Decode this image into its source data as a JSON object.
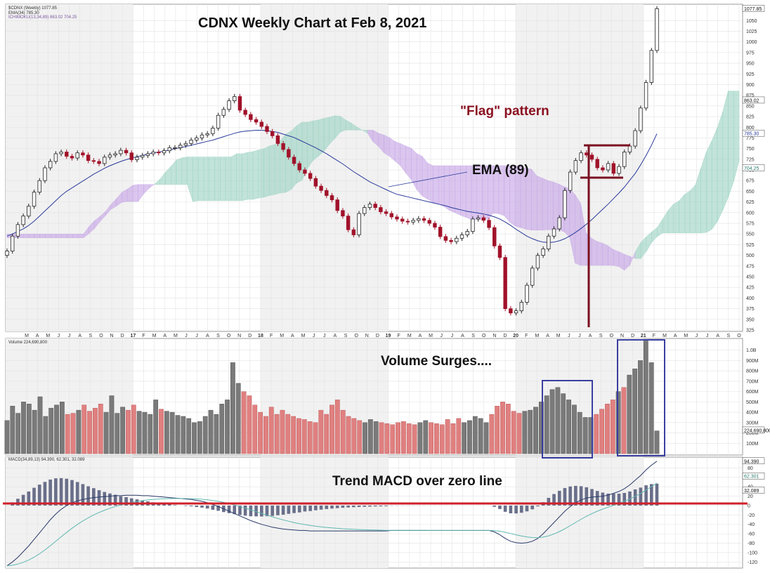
{
  "chart_data": {
    "type": "candlestick",
    "title": "CDNX Weekly Chart at Feb 8, 2021",
    "legend": {
      "price": "$CDNX (Weekly) 1077.85",
      "ema": "EMA(34) 785.30",
      "ichimoku": "ICHIMOKU(13,34,89) 863.02 704.25",
      "volume": "Volume 224,690,800",
      "macd": "MACD(34,89,13) 94.390, 62.301, 32.089"
    },
    "annotations": {
      "flag": "\"Flag\" pattern",
      "ema": "EMA (89)",
      "volume": "Volume Surges....",
      "macd": "Trend MACD over zero line"
    },
    "price_axis": {
      "ylim": [
        325,
        1085
      ],
      "ticks": [
        "1050",
        "1025",
        "1000",
        "975",
        "950",
        "925",
        "900",
        "875",
        "850",
        "825",
        "800",
        "775",
        "750",
        "725",
        "700",
        "675",
        "650",
        "625",
        "600",
        "575",
        "550",
        "525",
        "500",
        "475",
        "450",
        "425",
        "400",
        "375",
        "350",
        "325"
      ],
      "value_labels": [
        "1077.85",
        "863.02",
        "785.30",
        "704.25"
      ]
    },
    "volume_axis": {
      "ylim": [
        0,
        1100
      ],
      "ticks": [
        "1.0B",
        "900M",
        "800M",
        "700M",
        "600M",
        "500M",
        "400M",
        "300M",
        "200M",
        "100M"
      ],
      "value_labels": [
        "224,690,800"
      ]
    },
    "macd_axis": {
      "ylim": [
        -130,
        100
      ],
      "ticks": [
        "80",
        "60",
        "40",
        "20",
        "0",
        "-20",
        "-40",
        "-60",
        "-80",
        "-100",
        "-120"
      ],
      "value_labels": [
        "94.390",
        "62.301",
        "32.089"
      ]
    },
    "x_labels": [
      "M",
      "A",
      "M",
      "J",
      "J",
      "A",
      "S",
      "O",
      "N",
      "D",
      "17",
      "F",
      "M",
      "A",
      "M",
      "J",
      "J",
      "A",
      "S",
      "O",
      "N",
      "D",
      "18",
      "F",
      "M",
      "A",
      "M",
      "J",
      "J",
      "A",
      "S",
      "O",
      "N",
      "D",
      "19",
      "F",
      "M",
      "A",
      "M",
      "J",
      "J",
      "A",
      "S",
      "O",
      "N",
      "D",
      "20",
      "F",
      "M",
      "A",
      "M",
      "J",
      "J",
      "A",
      "S",
      "O",
      "N",
      "D",
      "21",
      "F",
      "M",
      "A",
      "M",
      "J",
      "J",
      "A",
      "S",
      "O"
    ],
    "close_series": [
      510,
      545,
      572,
      592,
      615,
      648,
      675,
      705,
      720,
      738,
      742,
      732,
      728,
      740,
      735,
      722,
      720,
      715,
      730,
      735,
      738,
      746,
      740,
      724,
      730,
      734,
      738,
      742,
      740,
      745,
      752,
      752,
      758,
      762,
      770,
      775,
      782,
      785,
      798,
      828,
      842,
      862,
      872,
      840,
      830,
      818,
      812,
      802,
      790,
      780,
      762,
      748,
      730,
      715,
      700,
      692,
      680,
      662,
      652,
      640,
      630,
      605,
      592,
      560,
      548,
      598,
      612,
      620,
      612,
      602,
      598,
      590,
      585,
      580,
      578,
      582,
      586,
      582,
      575,
      566,
      544,
      535,
      532,
      540,
      548,
      556,
      585,
      588,
      582,
      565,
      522,
      495,
      375,
      365,
      370,
      390,
      430,
      470,
      500,
      515,
      545,
      562,
      588,
      652,
      695,
      722,
      740,
      735,
      725,
      705,
      700,
      715,
      692,
      708,
      742,
      756,
      792,
      845,
      905,
      980,
      1077.85
    ],
    "ema89_series": [
      545,
      550,
      556,
      562,
      570,
      580,
      592,
      604,
      616,
      628,
      640,
      650,
      658,
      666,
      674,
      682,
      690,
      697,
      704,
      710,
      715,
      720,
      724,
      728,
      731,
      734,
      737,
      740,
      742,
      744,
      747,
      750,
      752,
      755,
      758,
      761,
      764,
      767,
      770,
      774,
      778,
      782,
      786,
      789,
      791,
      792,
      793,
      793,
      792,
      790,
      788,
      784,
      780,
      776,
      770,
      764,
      758,
      752,
      745,
      738,
      730,
      722,
      714,
      705,
      696,
      688,
      680,
      672,
      666,
      660,
      654,
      648,
      643,
      640,
      637,
      634,
      631,
      628,
      625,
      622,
      619,
      616,
      612,
      609,
      606,
      603,
      601,
      599,
      597,
      594,
      590,
      585,
      578,
      570,
      561,
      553,
      545,
      539,
      534,
      531,
      530,
      531,
      534,
      539,
      546,
      554,
      563,
      573,
      584,
      596,
      608,
      620,
      633,
      646,
      660,
      676,
      692,
      712,
      734,
      758,
      785
    ],
    "macd_series": [
      -128,
      -120,
      -110,
      -98,
      -86,
      -72,
      -58,
      -44,
      -30,
      -18,
      -8,
      0,
      6,
      10,
      13,
      15,
      17,
      18,
      19,
      20,
      21,
      21,
      22,
      22,
      22,
      21,
      21,
      20,
      19,
      18,
      17,
      16,
      15,
      14,
      13,
      11,
      9,
      6,
      2,
      -2,
      -7,
      -12,
      -17,
      -22,
      -27,
      -32,
      -36,
      -40,
      -43,
      -46,
      -48,
      -50,
      -51,
      -52,
      -53,
      -53,
      -54,
      -54,
      -54,
      -54,
      -54,
      -54,
      -54,
      -54,
      -54,
      -54,
      -54,
      -54,
      -54,
      -54,
      -54,
      -53,
      -53,
      -53,
      -53,
      -53,
      -53,
      -53,
      -53,
      -53,
      -53,
      -53,
      -53,
      -53,
      -53,
      -53,
      -53,
      -53,
      -53,
      -53,
      -56,
      -62,
      -70,
      -76,
      -79,
      -80,
      -79,
      -76,
      -70,
      -60,
      -48,
      -36,
      -24,
      -12,
      -2,
      6,
      12,
      16,
      18,
      19,
      20,
      22,
      26,
      30,
      36,
      44,
      54,
      64,
      76,
      86,
      94.39
    ],
    "volume_series": [
      320,
      460,
      390,
      500,
      480,
      420,
      550,
      360,
      440,
      470,
      500,
      380,
      390,
      420,
      470,
      410,
      440,
      480,
      400,
      560,
      390,
      450,
      420,
      470,
      410,
      400,
      380,
      520,
      430,
      410,
      400,
      370,
      360,
      340,
      300,
      310,
      360,
      420,
      380,
      480,
      520,
      880,
      680,
      600,
      560,
      470,
      400,
      360,
      450,
      380,
      420,
      380,
      360,
      340,
      330,
      310,
      300,
      420,
      380,
      470,
      520,
      420,
      360,
      340,
      320,
      300,
      330,
      310,
      300,
      290,
      280,
      300,
      310,
      290,
      280,
      300,
      320,
      300,
      290,
      280,
      330,
      290,
      340,
      300,
      320,
      360,
      340,
      300,
      380,
      460,
      500,
      480,
      410,
      390,
      410,
      420,
      450,
      500,
      560,
      620,
      640,
      580,
      520,
      470,
      400,
      350,
      350,
      380,
      430,
      480,
      520,
      600,
      640,
      760,
      820,
      900,
      1090,
      880,
      220
    ]
  }
}
